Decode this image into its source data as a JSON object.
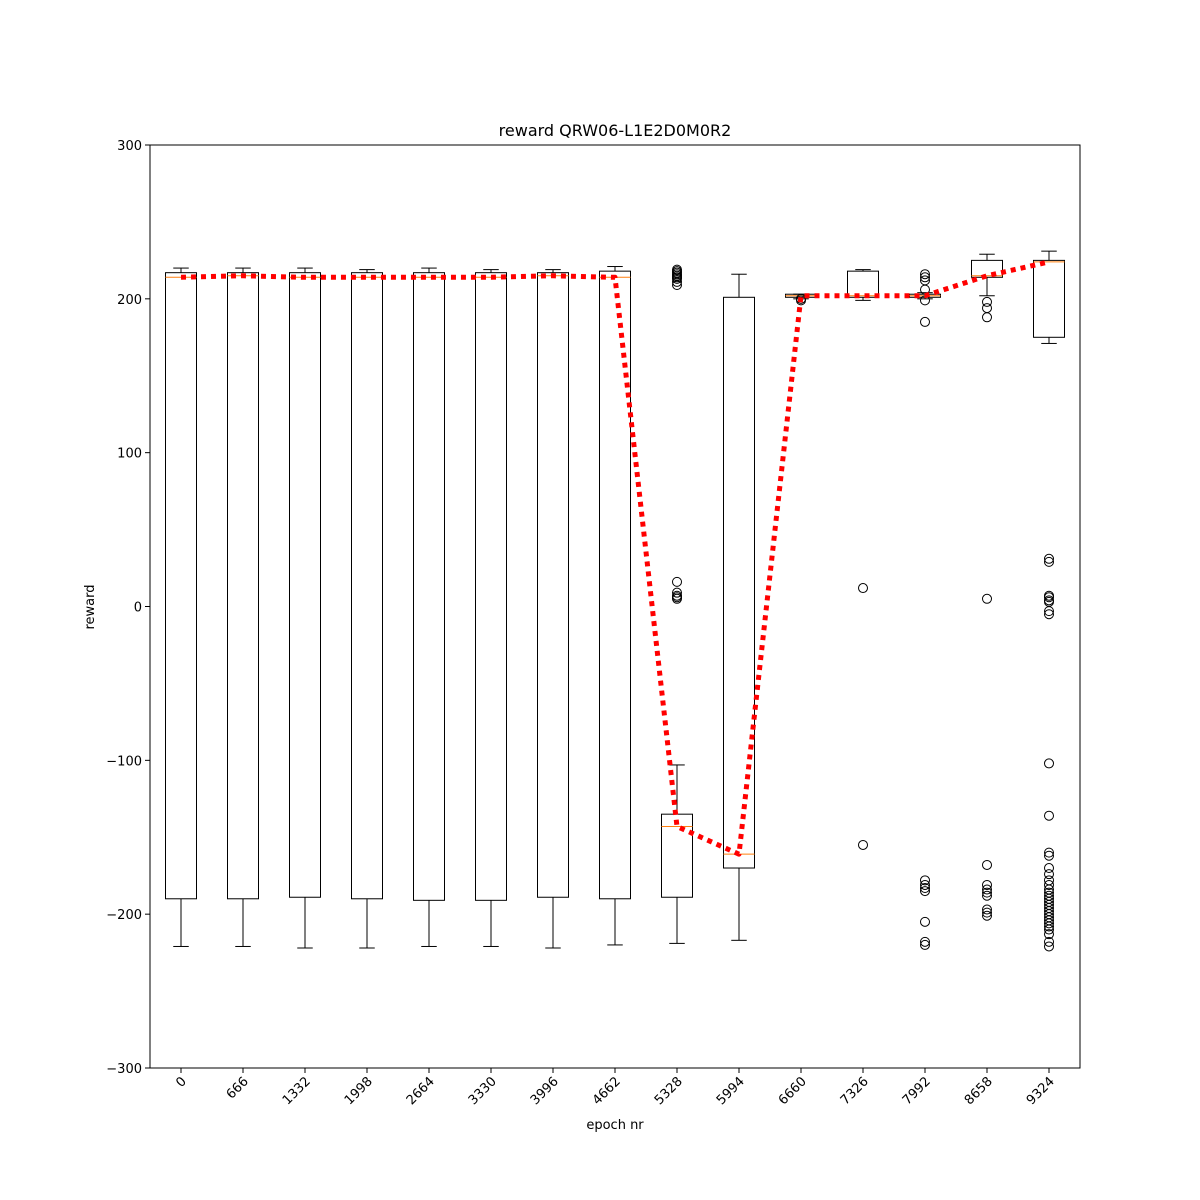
{
  "chart_data": {
    "type": "box",
    "title": "reward QRW06-L1E2D0M0R2",
    "xlabel": "epoch nr",
    "ylabel": "reward",
    "ylim": [
      -300,
      300
    ],
    "yticks": [
      -300,
      -200,
      -100,
      0,
      100,
      200,
      300
    ],
    "ytick_labels": [
      "−300",
      "−200",
      "−100",
      "0",
      "100",
      "200",
      "300"
    ],
    "categories": [
      "0",
      "666",
      "1332",
      "1998",
      "2664",
      "3330",
      "3996",
      "4662",
      "5328",
      "5994",
      "6660",
      "7326",
      "7992",
      "8658",
      "9324"
    ],
    "boxes": [
      {
        "whisker_low": -221,
        "q1": -190,
        "median": 214,
        "q3": 217,
        "whisker_high": 220,
        "outliers": []
      },
      {
        "whisker_low": -221,
        "q1": -190,
        "median": 215,
        "q3": 217,
        "whisker_high": 220,
        "outliers": []
      },
      {
        "whisker_low": -222,
        "q1": -189,
        "median": 214,
        "q3": 217,
        "whisker_high": 220,
        "outliers": []
      },
      {
        "whisker_low": -222,
        "q1": -190,
        "median": 214,
        "q3": 217,
        "whisker_high": 219,
        "outliers": []
      },
      {
        "whisker_low": -221,
        "q1": -191,
        "median": 214,
        "q3": 217,
        "whisker_high": 220,
        "outliers": []
      },
      {
        "whisker_low": -221,
        "q1": -191,
        "median": 214,
        "q3": 217,
        "whisker_high": 219,
        "outliers": []
      },
      {
        "whisker_low": -222,
        "q1": -189,
        "median": 215,
        "q3": 217,
        "whisker_high": 219,
        "outliers": []
      },
      {
        "whisker_low": -220,
        "q1": -190,
        "median": 214,
        "q3": 218,
        "whisker_high": 221,
        "outliers": []
      },
      {
        "whisker_low": -219,
        "q1": -189,
        "median": -143,
        "q3": -135,
        "whisker_high": -103,
        "outliers": [
          209,
          211,
          213,
          214,
          215,
          216,
          217,
          218,
          219,
          16,
          9,
          7,
          6,
          5
        ]
      },
      {
        "whisker_low": -217,
        "q1": -170,
        "median": -161,
        "q3": 201,
        "whisker_high": 216,
        "outliers": []
      },
      {
        "whisker_low": 200,
        "q1": 201,
        "median": 202,
        "q3": 203,
        "whisker_high": 203,
        "outliers": [
          199,
          200
        ]
      },
      {
        "whisker_low": 199,
        "q1": 201,
        "median": 202,
        "q3": 218,
        "whisker_high": 219,
        "outliers": [
          12,
          -155
        ]
      },
      {
        "whisker_low": 200,
        "q1": 201,
        "median": 202,
        "q3": 203,
        "whisker_high": 204,
        "outliers": [
          216,
          214,
          212,
          206,
          199,
          185,
          -178,
          -181,
          -183,
          -185,
          -205,
          -218,
          -220
        ]
      },
      {
        "whisker_low": 202,
        "q1": 214,
        "median": 215,
        "q3": 225,
        "whisker_high": 229,
        "outliers": [
          198,
          194,
          188,
          5,
          -168,
          -181,
          -184,
          -186,
          -188,
          -197,
          -199,
          -201
        ]
      },
      {
        "whisker_low": 171,
        "q1": 175,
        "median": 224,
        "q3": 225,
        "whisker_high": 231,
        "outliers": [
          31,
          29,
          7,
          6,
          4,
          3,
          -3,
          -5,
          -102,
          -136,
          -160,
          -162,
          -170,
          -174,
          -178,
          -181,
          -184,
          -186,
          -188,
          -190,
          -192,
          -194,
          -196,
          -198,
          -200,
          -202,
          -204,
          -206,
          -208,
          -210,
          -213,
          -218,
          -221
        ]
      }
    ],
    "median_line": {
      "values": [
        214,
        215,
        214,
        214,
        214,
        214,
        215,
        214,
        -143,
        -161,
        202,
        202,
        202,
        215,
        224
      ],
      "color": "#ff0000",
      "style": "dotted"
    },
    "colors": {
      "box": "#000000",
      "median": "#ff7f0e",
      "trend": "#ff0000",
      "background": "#ffffff"
    },
    "grid": false
  }
}
